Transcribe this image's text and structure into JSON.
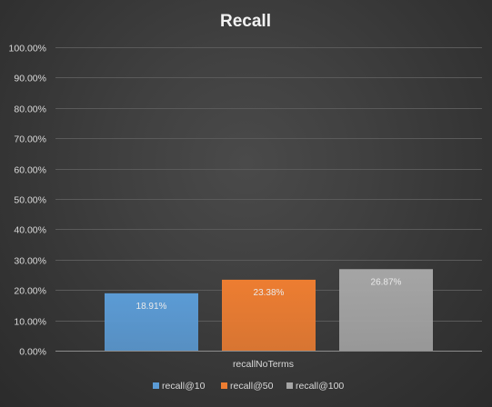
{
  "chart_data": {
    "type": "bar",
    "title": "Recall",
    "categories": [
      "recallNoTerms"
    ],
    "series": [
      {
        "name": "recall@10",
        "values": [
          18.91
        ],
        "label": "18.91%",
        "color": "#5b9bd5"
      },
      {
        "name": "recall@50",
        "values": [
          23.38
        ],
        "label": "23.38%",
        "color": "#ed7d31"
      },
      {
        "name": "recall@100",
        "values": [
          26.87
        ],
        "label": "26.87%",
        "color": "#a5a5a5"
      }
    ],
    "ylim": [
      0,
      100
    ],
    "yticks": [
      {
        "value": 0,
        "label": "0.00%"
      },
      {
        "value": 10,
        "label": "10.00%"
      },
      {
        "value": 20,
        "label": "20.00%"
      },
      {
        "value": 30,
        "label": "30.00%"
      },
      {
        "value": 40,
        "label": "40.00%"
      },
      {
        "value": 50,
        "label": "50.00%"
      },
      {
        "value": 60,
        "label": "60.00%"
      },
      {
        "value": 70,
        "label": "70.00%"
      },
      {
        "value": 80,
        "label": "80.00%"
      },
      {
        "value": 90,
        "label": "90.00%"
      },
      {
        "value": 100,
        "label": "100.00%"
      }
    ],
    "xlabel": "",
    "ylabel": "",
    "grid": true,
    "legend_position": "bottom",
    "data_labels": "inside-end"
  }
}
